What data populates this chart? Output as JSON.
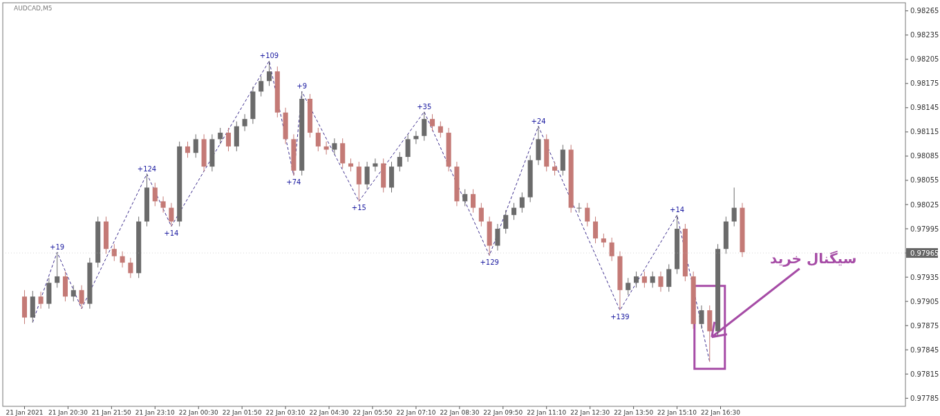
{
  "chart_data": {
    "type": "candlestick",
    "title": "AUDCAD,M5",
    "x": [
      "2021-01-21T19:10",
      "2021-01-21T19:25",
      "2021-01-21T19:40",
      "2021-01-21T19:55",
      "2021-01-21T20:10",
      "2021-01-21T20:25",
      "2021-01-21T20:40",
      "2021-01-21T20:55",
      "2021-01-21T21:10",
      "2021-01-21T21:25",
      "2021-01-21T21:40",
      "2021-01-21T21:55",
      "2021-01-21T22:10",
      "2021-01-21T22:25",
      "2021-01-21T22:40",
      "2021-01-21T22:55",
      "2021-01-21T23:10",
      "2021-01-21T23:25",
      "2021-01-21T23:40",
      "2021-01-21T23:55",
      "2021-01-22T00:10",
      "2021-01-22T00:25",
      "2021-01-22T00:40",
      "2021-01-22T00:55",
      "2021-01-22T01:10",
      "2021-01-22T01:25",
      "2021-01-22T01:40",
      "2021-01-22T01:55",
      "2021-01-22T02:10",
      "2021-01-22T02:25",
      "2021-01-22T02:40",
      "2021-01-22T02:55",
      "2021-01-22T03:10",
      "2021-01-22T03:25",
      "2021-01-22T03:40",
      "2021-01-22T03:55",
      "2021-01-22T04:10",
      "2021-01-22T04:25",
      "2021-01-22T04:40",
      "2021-01-22T04:55",
      "2021-01-22T05:10",
      "2021-01-22T05:25",
      "2021-01-22T05:40",
      "2021-01-22T05:55",
      "2021-01-22T06:10",
      "2021-01-22T06:25",
      "2021-01-22T06:40",
      "2021-01-22T06:55",
      "2021-01-22T07:10",
      "2021-01-22T07:25",
      "2021-01-22T07:40",
      "2021-01-22T07:55",
      "2021-01-22T08:10",
      "2021-01-22T08:25",
      "2021-01-22T08:40",
      "2021-01-22T08:55",
      "2021-01-22T09:10",
      "2021-01-22T09:25",
      "2021-01-22T09:40",
      "2021-01-22T09:55",
      "2021-01-22T10:10",
      "2021-01-22T10:25",
      "2021-01-22T10:40",
      "2021-01-22T10:55",
      "2021-01-22T11:10",
      "2021-01-22T11:25",
      "2021-01-22T11:40",
      "2021-01-22T11:55",
      "2021-01-22T12:10",
      "2021-01-22T12:25",
      "2021-01-22T12:40",
      "2021-01-22T12:55",
      "2021-01-22T13:10",
      "2021-01-22T13:25",
      "2021-01-22T13:40",
      "2021-01-22T13:55",
      "2021-01-22T14:10",
      "2021-01-22T14:25",
      "2021-01-22T14:40",
      "2021-01-22T14:55",
      "2021-01-22T15:10",
      "2021-01-22T15:25",
      "2021-01-22T15:40",
      "2021-01-22T15:55",
      "2021-01-22T16:10",
      "2021-01-22T16:25",
      "2021-01-22T16:40",
      "2021-01-22T16:55",
      "2021-01-22T17:10"
    ],
    "ohlc": [
      [
        0.97911,
        0.97919,
        0.97877,
        0.97885
      ],
      [
        0.97885,
        0.97918,
        0.97879,
        0.97911
      ],
      [
        0.97911,
        0.97917,
        0.97896,
        0.97902
      ],
      [
        0.97902,
        0.97934,
        0.97896,
        0.97928
      ],
      [
        0.97928,
        0.97966,
        0.97922,
        0.97936
      ],
      [
        0.97936,
        0.97942,
        0.97905,
        0.97911
      ],
      [
        0.97911,
        0.97925,
        0.97905,
        0.97919
      ],
      [
        0.97919,
        0.97925,
        0.97896,
        0.97902
      ],
      [
        0.97902,
        0.97959,
        0.97896,
        0.97953
      ],
      [
        0.97953,
        0.9801,
        0.97947,
        0.98004
      ],
      [
        0.98004,
        0.9801,
        0.97964,
        0.9797
      ],
      [
        0.9797,
        0.97976,
        0.97955,
        0.97961
      ],
      [
        0.97961,
        0.97967,
        0.97947,
        0.97953
      ],
      [
        0.97953,
        0.97959,
        0.97934,
        0.9794
      ],
      [
        0.9794,
        0.9801,
        0.97934,
        0.98004
      ],
      [
        0.98004,
        0.98063,
        0.97998,
        0.98046
      ],
      [
        0.98046,
        0.98052,
        0.98023,
        0.98029
      ],
      [
        0.98029,
        0.98035,
        0.98015,
        0.98021
      ],
      [
        0.98021,
        0.98027,
        0.97998,
        0.98004
      ],
      [
        0.98004,
        0.98103,
        0.97998,
        0.98097
      ],
      [
        0.98097,
        0.98103,
        0.98083,
        0.98089
      ],
      [
        0.98089,
        0.98112,
        0.98083,
        0.98106
      ],
      [
        0.98106,
        0.98112,
        0.98066,
        0.98072
      ],
      [
        0.98072,
        0.98112,
        0.98066,
        0.98106
      ],
      [
        0.98106,
        0.9812,
        0.981,
        0.98114
      ],
      [
        0.98114,
        0.9812,
        0.98091,
        0.98097
      ],
      [
        0.98097,
        0.98128,
        0.98091,
        0.98122
      ],
      [
        0.98122,
        0.98137,
        0.98116,
        0.98131
      ],
      [
        0.98131,
        0.98171,
        0.98125,
        0.98165
      ],
      [
        0.98165,
        0.98184,
        0.98159,
        0.98178
      ],
      [
        0.98178,
        0.98203,
        0.98172,
        0.9819
      ],
      [
        0.9819,
        0.98196,
        0.98133,
        0.98139
      ],
      [
        0.98139,
        0.98145,
        0.981,
        0.98106
      ],
      [
        0.98106,
        0.98112,
        0.98061,
        0.98067
      ],
      [
        0.98067,
        0.98165,
        0.98061,
        0.98156
      ],
      [
        0.98156,
        0.98162,
        0.98108,
        0.98114
      ],
      [
        0.98114,
        0.9812,
        0.98091,
        0.98097
      ],
      [
        0.98097,
        0.98103,
        0.98087,
        0.98093
      ],
      [
        0.98093,
        0.98107,
        0.98087,
        0.98101
      ],
      [
        0.98101,
        0.98107,
        0.9807,
        0.98076
      ],
      [
        0.98076,
        0.98082,
        0.98066,
        0.98072
      ],
      [
        0.98072,
        0.98078,
        0.98029,
        0.9805
      ],
      [
        0.9805,
        0.98078,
        0.98044,
        0.98072
      ],
      [
        0.98072,
        0.98082,
        0.98066,
        0.98076
      ],
      [
        0.98076,
        0.98082,
        0.9804,
        0.98046
      ],
      [
        0.98046,
        0.98078,
        0.9804,
        0.98072
      ],
      [
        0.98072,
        0.9809,
        0.98066,
        0.98084
      ],
      [
        0.98084,
        0.98112,
        0.98078,
        0.98106
      ],
      [
        0.98106,
        0.98116,
        0.981,
        0.9811
      ],
      [
        0.9811,
        0.9814,
        0.98104,
        0.98131
      ],
      [
        0.98131,
        0.98137,
        0.98116,
        0.98122
      ],
      [
        0.98122,
        0.98128,
        0.98108,
        0.98114
      ],
      [
        0.98114,
        0.9812,
        0.98066,
        0.98072
      ],
      [
        0.98072,
        0.98078,
        0.98023,
        0.98029
      ],
      [
        0.98029,
        0.98044,
        0.98023,
        0.98038
      ],
      [
        0.98038,
        0.98044,
        0.98015,
        0.98021
      ],
      [
        0.98021,
        0.98027,
        0.97998,
        0.98004
      ],
      [
        0.98004,
        0.9801,
        0.97962,
        0.97974
      ],
      [
        0.97974,
        0.98001,
        0.97968,
        0.97995
      ],
      [
        0.97995,
        0.98018,
        0.97989,
        0.98012
      ],
      [
        0.98012,
        0.98027,
        0.98006,
        0.98021
      ],
      [
        0.98021,
        0.9804,
        0.98015,
        0.98034
      ],
      [
        0.98034,
        0.98086,
        0.98028,
        0.9808
      ],
      [
        0.9808,
        0.98122,
        0.98074,
        0.98106
      ],
      [
        0.98106,
        0.98112,
        0.98066,
        0.98072
      ],
      [
        0.98072,
        0.98078,
        0.98061,
        0.98067
      ],
      [
        0.98067,
        0.98099,
        0.98061,
        0.98093
      ],
      [
        0.98093,
        0.98099,
        0.98015,
        0.98021
      ],
      [
        0.98021,
        0.98027,
        0.98015,
        0.98021
      ],
      [
        0.98021,
        0.98027,
        0.97998,
        0.98004
      ],
      [
        0.98004,
        0.9801,
        0.97977,
        0.97983
      ],
      [
        0.97983,
        0.97989,
        0.97972,
        0.97978
      ],
      [
        0.97978,
        0.97984,
        0.97955,
        0.97961
      ],
      [
        0.97961,
        0.97967,
        0.97894,
        0.97919
      ],
      [
        0.97919,
        0.97934,
        0.97913,
        0.97928
      ],
      [
        0.97928,
        0.97942,
        0.97922,
        0.97936
      ],
      [
        0.97936,
        0.97942,
        0.97922,
        0.97928
      ],
      [
        0.97928,
        0.97942,
        0.97922,
        0.97936
      ],
      [
        0.97936,
        0.97942,
        0.97917,
        0.97923
      ],
      [
        0.97923,
        0.97951,
        0.97917,
        0.97945
      ],
      [
        0.97945,
        0.98012,
        0.97939,
        0.97995
      ],
      [
        0.97995,
        0.98001,
        0.9793,
        0.97936
      ],
      [
        0.97936,
        0.97942,
        0.97871,
        0.97877
      ],
      [
        0.97877,
        0.979,
        0.97871,
        0.97894
      ],
      [
        0.97894,
        0.979,
        0.9783,
        0.97868
      ],
      [
        0.97868,
        0.97976,
        0.97862,
        0.9797
      ],
      [
        0.9797,
        0.9801,
        0.97964,
        0.98004
      ],
      [
        0.98004,
        0.98046,
        0.97998,
        0.98021
      ],
      [
        0.98021,
        0.98027,
        0.9796,
        0.97966
      ]
    ],
    "colors": [
      "#c47a76",
      "#6b6b6b",
      "#c47a76",
      "#6b6b6b",
      "#6b6b6b",
      "#c47a76",
      "#6b6b6b",
      "#c47a76",
      "#6b6b6b",
      "#6b6b6b",
      "#c47a76",
      "#c47a76",
      "#c47a76",
      "#c47a76",
      "#6b6b6b",
      "#6b6b6b",
      "#c47a76",
      "#c47a76",
      "#c47a76",
      "#6b6b6b",
      "#c47a76",
      "#6b6b6b",
      "#c47a76",
      "#6b6b6b",
      "#6b6b6b",
      "#c47a76",
      "#6b6b6b",
      "#6b6b6b",
      "#6b6b6b",
      "#6b6b6b",
      "#6b6b6b",
      "#c47a76",
      "#c47a76",
      "#c47a76",
      "#6b6b6b",
      "#c47a76",
      "#c47a76",
      "#c47a76",
      "#6b6b6b",
      "#c47a76",
      "#c47a76",
      "#c47a76",
      "#6b6b6b",
      "#6b6b6b",
      "#c47a76",
      "#6b6b6b",
      "#6b6b6b",
      "#6b6b6b",
      "#6b6b6b",
      "#6b6b6b",
      "#c47a76",
      "#c47a76",
      "#c47a76",
      "#c47a76",
      "#6b6b6b",
      "#c47a76",
      "#c47a76",
      "#c47a76",
      "#6b6b6b",
      "#6b6b6b",
      "#6b6b6b",
      "#6b6b6b",
      "#6b6b6b",
      "#6b6b6b",
      "#c47a76",
      "#c47a76",
      "#6b6b6b",
      "#c47a76",
      "#6b6b6b",
      "#c47a76",
      "#c47a76",
      "#c47a76",
      "#c47a76",
      "#c47a76",
      "#6b6b6b",
      "#6b6b6b",
      "#c47a76",
      "#6b6b6b",
      "#c47a76",
      "#6b6b6b",
      "#6b6b6b",
      "#c47a76",
      "#c47a76",
      "#6b6b6b",
      "#c47a76",
      "#6b6b6b",
      "#6b6b6b",
      "#6b6b6b",
      "#c47a76"
    ],
    "series": [
      {
        "type": "line",
        "color": "#3a2a8c",
        "line_style": "dashed",
        "marker": "none",
        "x": [
          "2021-01-21T19:25",
          "2021-01-21T20:10",
          "2021-01-21T20:55",
          "2021-01-21T22:55",
          "2021-01-21T23:40",
          "2021-01-22T02:40",
          "2021-01-22T03:25",
          "2021-01-22T03:40",
          "2021-01-22T05:25",
          "2021-01-22T07:25",
          "2021-01-22T09:25",
          "2021-01-22T10:55",
          "2021-01-22T13:25",
          "2021-01-22T15:10",
          "2021-01-22T16:10"
        ],
        "values": [
          0.97879,
          0.97966,
          0.97896,
          0.98063,
          0.97998,
          0.98203,
          0.98061,
          0.98165,
          0.98029,
          0.9814,
          0.97962,
          0.98122,
          0.97894,
          0.98012,
          0.9783
        ]
      }
    ],
    "annotations": [
      {
        "text": "+19",
        "x": "2021-01-21T20:10",
        "y": 0.97966
      },
      {
        "text": "+124",
        "x": "2021-01-21T22:55",
        "y": 0.98063
      },
      {
        "text": "+14",
        "x": "2021-01-21T23:40",
        "y": 0.97998
      },
      {
        "text": "+109",
        "x": "2021-01-22T02:40",
        "y": 0.98203
      },
      {
        "text": "+74",
        "x": "2021-01-22T03:25",
        "y": 0.98061
      },
      {
        "text": "+9",
        "x": "2021-01-22T03:40",
        "y": 0.98165
      },
      {
        "text": "+15",
        "x": "2021-01-22T05:25",
        "y": 0.98029
      },
      {
        "text": "+35",
        "x": "2021-01-22T07:25",
        "y": 0.9814
      },
      {
        "text": "+129",
        "x": "2021-01-22T09:25",
        "y": 0.97962
      },
      {
        "text": "+24",
        "x": "2021-01-22T10:55",
        "y": 0.98122
      },
      {
        "text": "+139",
        "x": "2021-01-22T13:25",
        "y": 0.97894
      },
      {
        "text": "+14",
        "x": "2021-01-22T15:10",
        "y": 0.98012
      },
      {
        "text": "سیگنال خرید",
        "x": "2021-01-22T16:10",
        "y": 0.9786
      }
    ],
    "ref_lines": [
      {
        "axis": "y",
        "value": 0.97965,
        "label": "0.97965"
      }
    ],
    "xlim": [
      "2021-01-21T18:30",
      "2021-01-22T22:10"
    ],
    "xticks": [
      {
        "value": "2021-01-21T19:10",
        "label": "21 Jan 2021"
      },
      {
        "value": "2021-01-21T20:30",
        "label": "21 Jan 20:30"
      },
      {
        "value": "2021-01-21T21:50",
        "label": "21 Jan 21:50"
      },
      {
        "value": "2021-01-21T23:10",
        "label": "21 Jan 23:10"
      },
      {
        "value": "2021-01-22T00:30",
        "label": "22 Jan 00:30"
      },
      {
        "value": "2021-01-22T01:50",
        "label": "22 Jan 01:50"
      },
      {
        "value": "2021-01-22T03:10",
        "label": "22 Jan 03:10"
      },
      {
        "value": "2021-01-22T04:30",
        "label": "22 Jan 04:30"
      },
      {
        "value": "2021-01-22T05:50",
        "label": "22 Jan 05:50"
      },
      {
        "value": "2021-01-22T07:10",
        "label": "22 Jan 07:10"
      },
      {
        "value": "2021-01-22T08:30",
        "label": "22 Jan 08:30"
      },
      {
        "value": "2021-01-22T09:50",
        "label": "22 Jan 09:50"
      },
      {
        "value": "2021-01-22T11:10",
        "label": "22 Jan 11:10"
      },
      {
        "value": "2021-01-22T12:30",
        "label": "22 Jan 12:30"
      },
      {
        "value": "2021-01-22T13:50",
        "label": "22 Jan 13:50"
      },
      {
        "value": "2021-01-22T15:10",
        "label": "22 Jan 15:10"
      },
      {
        "value": "2021-01-22T16:30",
        "label": "22 Jan 16:30"
      }
    ],
    "ylim": [
      0.97775,
      0.98275
    ],
    "yticks": [
      0.97785,
      0.97815,
      0.97845,
      0.97875,
      0.97905,
      0.97935,
      {
        "value": 0.97965,
        "label": null
      },
      0.97995,
      0.98025,
      0.98055,
      0.98085,
      0.98115,
      0.98145,
      0.98175,
      0.98205,
      0.98235,
      0.98265
    ],
    "grid": false
  }
}
